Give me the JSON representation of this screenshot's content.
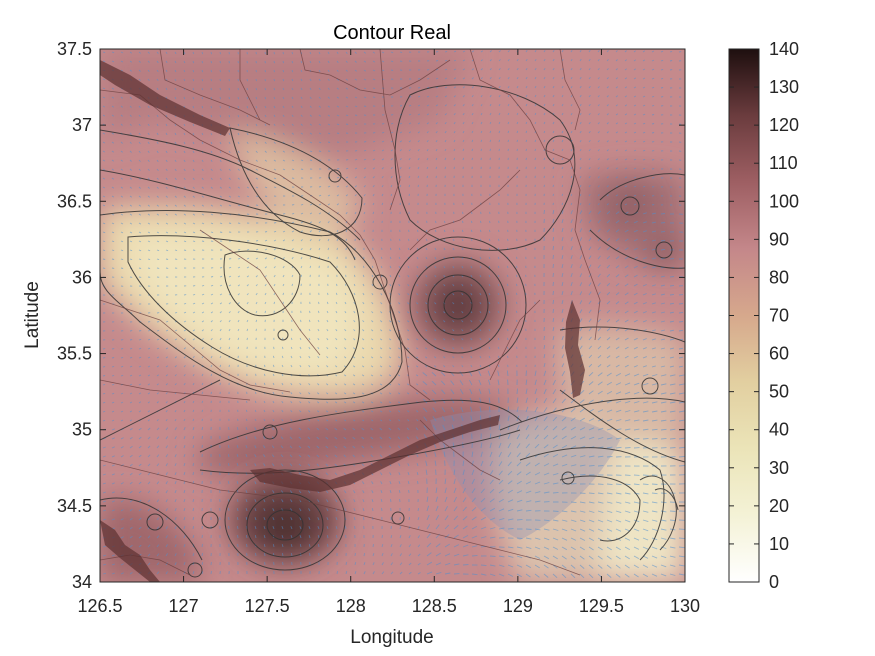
{
  "chart_data": {
    "type": "heatmap",
    "title": "Contour Real",
    "xlabel": "Longitude",
    "ylabel": "Latitude",
    "xlim": [
      126.5,
      130
    ],
    "ylim": [
      34,
      37.5
    ],
    "xticks": [
      126.5,
      127,
      127.5,
      128,
      128.5,
      129,
      129.5,
      130
    ],
    "yticks": [
      34,
      34.5,
      35,
      35.5,
      36,
      36.5,
      37,
      37.5
    ],
    "xtick_labels": [
      "126.5",
      "127",
      "127.5",
      "128",
      "128.5",
      "129",
      "129.5",
      "130"
    ],
    "ytick_labels": [
      "34",
      "34.5",
      "35",
      "35.5",
      "36",
      "36.5",
      "37",
      "37.5"
    ],
    "colorbar": {
      "range": [
        0,
        140
      ],
      "ticks": [
        0,
        10,
        20,
        30,
        40,
        50,
        60,
        70,
        80,
        90,
        100,
        110,
        120,
        130,
        140
      ],
      "tick_labels": [
        "0",
        "10",
        "20",
        "30",
        "40",
        "50",
        "60",
        "70",
        "80",
        "90",
        "100",
        "110",
        "120",
        "130",
        "140"
      ],
      "colors": [
        "#ffffff",
        "#f4f2d6",
        "#ebe4b8",
        "#e2cfa0",
        "#d6a88c",
        "#c4878a",
        "#9e5f63",
        "#6b3c3e",
        "#1e0f0f"
      ]
    },
    "field_description": "Heatmap of values over the lon/lat domain, with contour lines, quiver arrows and region boundaries overlaid.",
    "field_peaks": [
      {
        "lon": 128.6,
        "lat": 35.85,
        "value": 125
      },
      {
        "lon": 127.6,
        "lat": 34.4,
        "value": 120
      },
      {
        "lon": 127.0,
        "lat": 35.9,
        "value": 55
      },
      {
        "lon": 129.7,
        "lat": 34.4,
        "value": 45
      },
      {
        "lon": 129.9,
        "lat": 34.6,
        "value": 30
      },
      {
        "lon": 128.2,
        "lat": 37.3,
        "value": 95
      },
      {
        "lon": 129.7,
        "lat": 36.4,
        "value": 100
      }
    ],
    "grid": false,
    "legend": "none",
    "colors": {
      "axis": "#262626",
      "contour": "#333333",
      "quiver": "#4f8fcf",
      "boundary": "#6b3f3f"
    }
  }
}
